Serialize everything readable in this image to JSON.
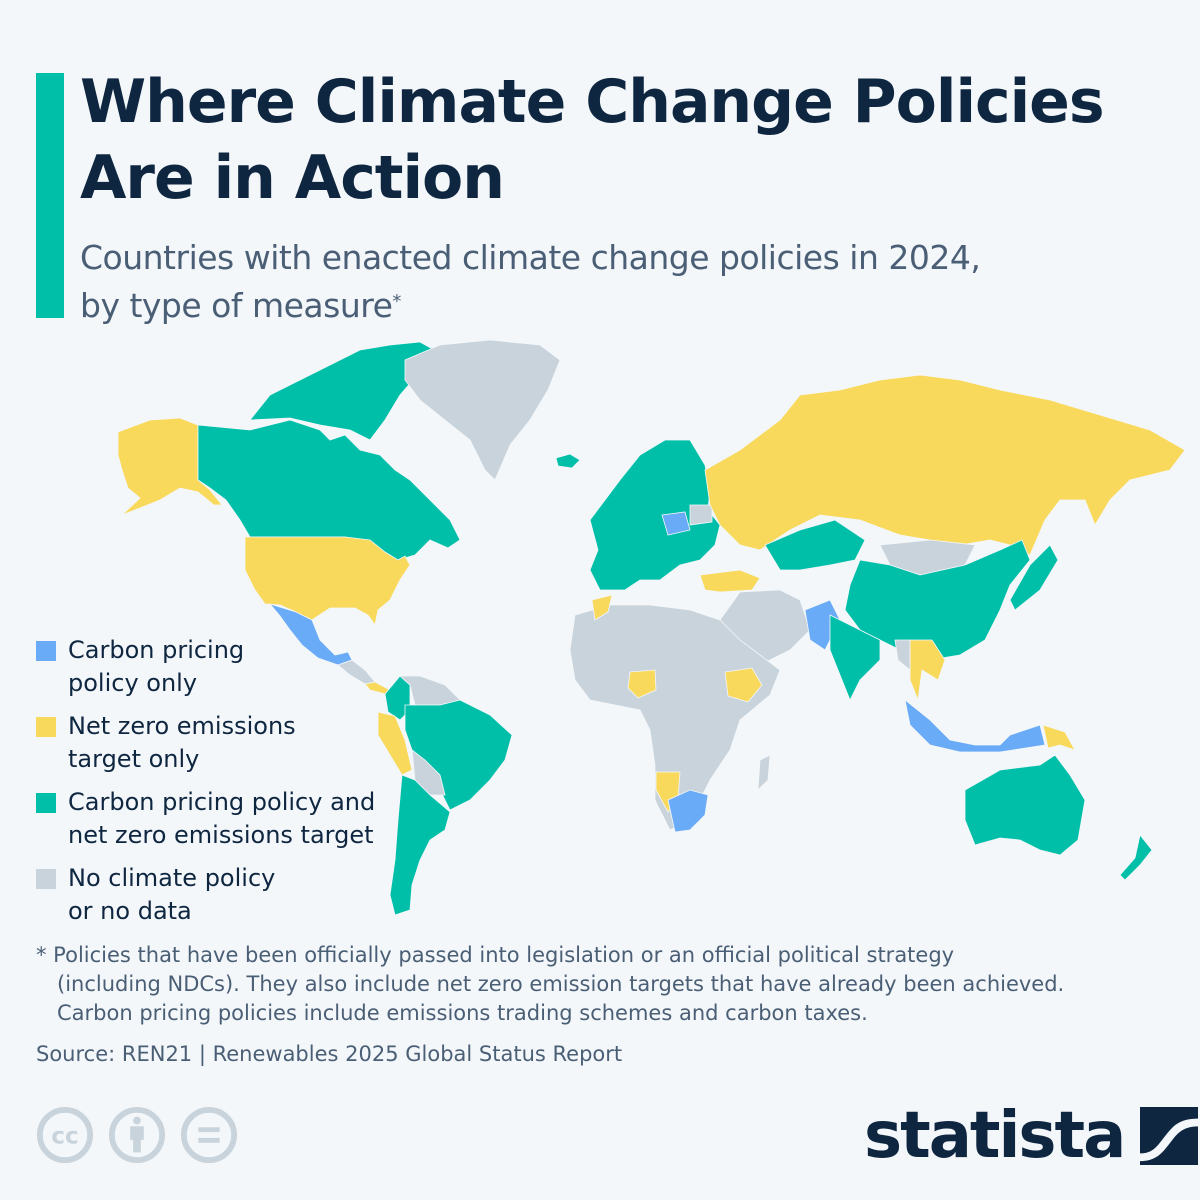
{
  "header": {
    "title_line1": "Where Climate Change Policies",
    "title_line2": "Are in Action",
    "subtitle_line1": "Countries with enacted climate change policies in 2024,",
    "subtitle_line2": "by type of measure",
    "subtitle_marker": "*"
  },
  "colors": {
    "accent": "#00bfa9",
    "carbon_pricing_only": "#6aabf7",
    "net_zero_only": "#f9d95b",
    "both": "#00bfa9",
    "none": "#c8d3db",
    "text_dark": "#0f2640",
    "text_muted": "#4a5e75",
    "background": "#f3f7fa"
  },
  "legend": [
    {
      "key": "carbon_pricing_only",
      "label_line1": "Carbon pricing",
      "label_line2": "policy only",
      "color": "#6aabf7"
    },
    {
      "key": "net_zero_only",
      "label_line1": "Net zero emissions",
      "label_line2": "target only",
      "color": "#f9d95b"
    },
    {
      "key": "both",
      "label_line1": "Carbon pricing policy and",
      "label_line2": "net zero emissions target",
      "color": "#00bfa9"
    },
    {
      "key": "none",
      "label_line1": "No climate policy",
      "label_line2": "or no data",
      "color": "#c8d3db"
    }
  ],
  "chart_data": {
    "type": "choropleth",
    "title": "Where Climate Change Policies Are in Action",
    "subtitle": "Countries with enacted climate change policies in 2024, by type of measure",
    "categories": [
      "Carbon pricing policy only",
      "Net zero emissions target only",
      "Carbon pricing policy and net zero emissions target",
      "No climate policy or no data"
    ],
    "regions": [
      {
        "name": "Alaska (USA)",
        "category": "net_zero_only"
      },
      {
        "name": "Canada",
        "category": "both"
      },
      {
        "name": "Canadian Arctic",
        "category": "both"
      },
      {
        "name": "Greenland",
        "category": "none"
      },
      {
        "name": "Iceland",
        "category": "both"
      },
      {
        "name": "United States",
        "category": "net_zero_only"
      },
      {
        "name": "Mexico",
        "category": "carbon_pricing_only"
      },
      {
        "name": "Central America",
        "category": "none"
      },
      {
        "name": "Costa Rica / Panama",
        "category": "net_zero_only"
      },
      {
        "name": "Colombia",
        "category": "both"
      },
      {
        "name": "Venezuela / Guianas",
        "category": "none"
      },
      {
        "name": "Peru",
        "category": "net_zero_only"
      },
      {
        "name": "Brazil",
        "category": "both"
      },
      {
        "name": "Bolivia / Paraguay",
        "category": "none"
      },
      {
        "name": "Chile / Argentina / Uruguay",
        "category": "both"
      },
      {
        "name": "Europe",
        "category": "both"
      },
      {
        "name": "Poland",
        "category": "carbon_pricing_only"
      },
      {
        "name": "Belarus",
        "category": "none"
      },
      {
        "name": "Russia",
        "category": "net_zero_only"
      },
      {
        "name": "Turkey",
        "category": "net_zero_only"
      },
      {
        "name": "Kazakhstan",
        "category": "both"
      },
      {
        "name": "Mongolia",
        "category": "none"
      },
      {
        "name": "China",
        "category": "both"
      },
      {
        "name": "Middle East",
        "category": "none"
      },
      {
        "name": "Pakistan",
        "category": "carbon_pricing_only"
      },
      {
        "name": "India",
        "category": "both"
      },
      {
        "name": "Japan",
        "category": "both"
      },
      {
        "name": "Thailand / Laos / Cambodia",
        "category": "net_zero_only"
      },
      {
        "name": "Myanmar",
        "category": "none"
      },
      {
        "name": "Indonesia",
        "category": "carbon_pricing_only"
      },
      {
        "name": "Papua New Guinea",
        "category": "net_zero_only"
      },
      {
        "name": "Africa",
        "category": "none"
      },
      {
        "name": "Morocco",
        "category": "net_zero_only"
      },
      {
        "name": "Nigeria",
        "category": "net_zero_only"
      },
      {
        "name": "Ethiopia",
        "category": "net_zero_only"
      },
      {
        "name": "Namibia",
        "category": "net_zero_only"
      },
      {
        "name": "South Africa",
        "category": "carbon_pricing_only"
      },
      {
        "name": "Madagascar",
        "category": "none"
      },
      {
        "name": "Australia",
        "category": "both"
      },
      {
        "name": "New Zealand",
        "category": "both"
      }
    ]
  },
  "footnote": {
    "line1": "* Policies that have been officially passed into legislation or an official political strategy",
    "line2": "(including NDCs). They also include net zero emission targets that have already been achieved.",
    "line3": "Carbon pricing policies include emissions trading schemes and carbon taxes."
  },
  "source": "Source: REN21 | Renewables 2025 Global Status Report",
  "license_icons": [
    "cc-icon",
    "attribution-icon",
    "no-derivatives-icon"
  ],
  "brand": {
    "name": "statista"
  }
}
